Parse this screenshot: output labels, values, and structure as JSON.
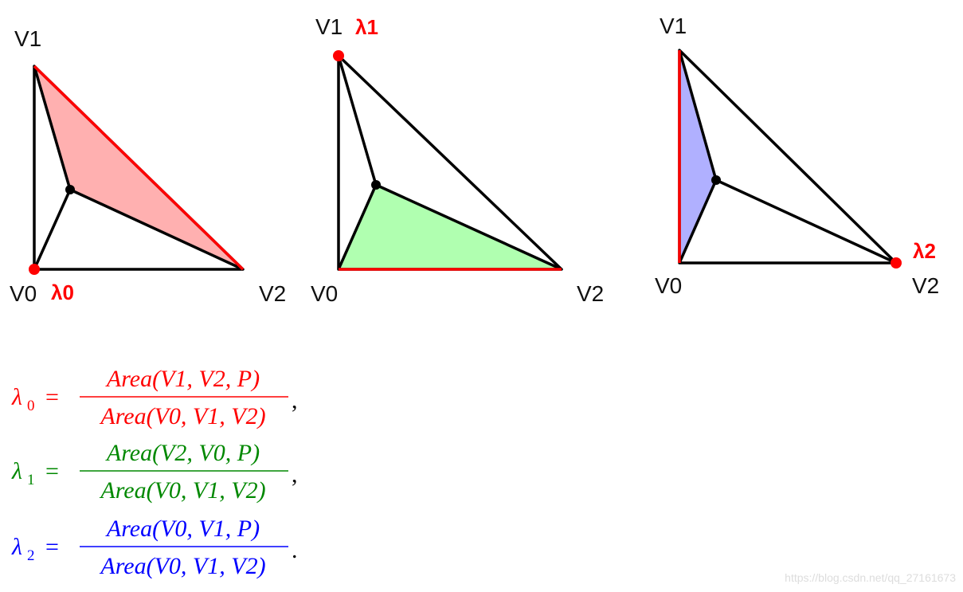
{
  "diagrams": [
    {
      "vertex_labels": [
        "V0",
        "V1",
        "V2"
      ],
      "lambda_label": "λ0"
    },
    {
      "vertex_labels": [
        "V0",
        "V1",
        "V2"
      ],
      "lambda_label": "λ1"
    },
    {
      "vertex_labels": [
        "V0",
        "V1",
        "V2"
      ],
      "lambda_label": "λ2"
    }
  ],
  "formulas": [
    {
      "symbol": "λ",
      "subscript": "0",
      "equals": "=",
      "numerator": "Area(V1, V2, P)",
      "denominator": "Area(V0, V1, V2)",
      "punctuation": ","
    },
    {
      "symbol": "λ",
      "subscript": "1",
      "equals": "=",
      "numerator": "Area(V2, V0, P)",
      "denominator": "Area(V0, V1, V2)",
      "punctuation": ","
    },
    {
      "symbol": "λ",
      "subscript": "2",
      "equals": "=",
      "numerator": "Area(V0, V1, P)",
      "denominator": "Area(V0, V1, V2)",
      "punctuation": "."
    }
  ],
  "watermark": "https://blog.csdn.net/qq_27161673"
}
